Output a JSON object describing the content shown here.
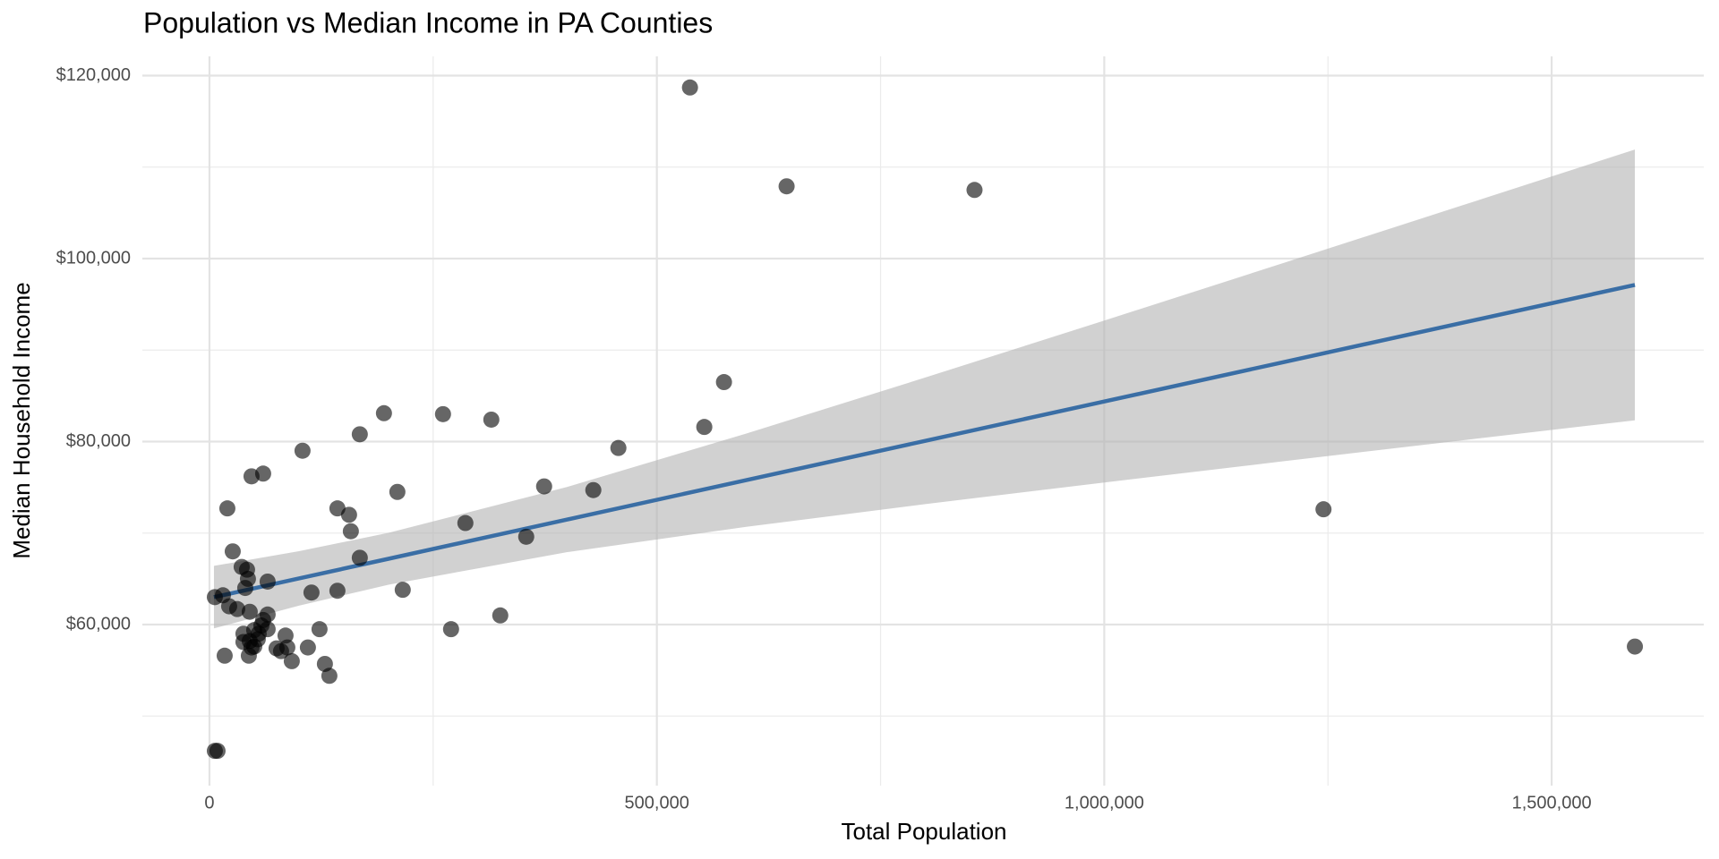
{
  "chart_data": {
    "type": "scatter",
    "title": "Population vs Median Income in PA Counties",
    "x_label": "Total Population",
    "y_label": "Median Household Income",
    "x": [
      537000,
      645000,
      855000,
      1245000,
      1593000,
      575000,
      553000,
      457000,
      429000,
      374000,
      354000,
      286000,
      315000,
      261000,
      195000,
      168000,
      210000,
      216000,
      325000,
      270000,
      104000,
      143000,
      156000,
      158000,
      168000,
      143000,
      114000,
      123000,
      110000,
      129000,
      134000,
      92000,
      85000,
      87000,
      80000,
      75000,
      60000,
      47000,
      20000,
      26000,
      65000,
      65000,
      60000,
      65000,
      36000,
      42000,
      43000,
      40000,
      45000,
      31000,
      22000,
      15000,
      6000,
      50000,
      38000,
      45000,
      38000,
      50000,
      44000,
      17000,
      55000,
      6000,
      9000,
      54000,
      47000,
      58000
    ],
    "values": [
      118700,
      107900,
      107500,
      72600,
      57600,
      86500,
      81600,
      79300,
      74700,
      75100,
      69600,
      71100,
      82400,
      83000,
      83100,
      80800,
      74500,
      63800,
      61000,
      59500,
      79000,
      72700,
      72000,
      70200,
      67300,
      63700,
      63500,
      59500,
      57500,
      55700,
      54400,
      56000,
      58800,
      57500,
      57100,
      57400,
      76500,
      76200,
      72700,
      68000,
      64700,
      61100,
      60500,
      59500,
      66300,
      66000,
      65000,
      64000,
      61400,
      61700,
      62000,
      63200,
      63000,
      59400,
      59000,
      58200,
      58100,
      57600,
      56600,
      56600,
      59000,
      46200,
      46200,
      58400,
      57500,
      59900
    ],
    "color": "#000000",
    "point_opacity": 0.6,
    "fit": {
      "x": [
        5000,
        100000,
        200000,
        400000,
        600000,
        800000,
        1000000,
        1200000,
        1400000,
        1593000
      ],
      "values": [
        63000,
        65042,
        67190,
        71488,
        75785,
        80083,
        84380,
        88677,
        92975,
        97122
      ],
      "lower": [
        59584,
        62064,
        64360,
        67921,
        70685,
        73165,
        75532,
        77847,
        80136,
        82328
      ],
      "upper": [
        66416,
        68020,
        70020,
        75055,
        80885,
        87001,
        93228,
        99507,
        105814,
        111916
      ],
      "color": "#3a6ea5",
      "band_color": "#b3b3b3"
    },
    "xlim": [
      -75000,
      1670000
    ],
    "ylim": [
      42400,
      122100
    ],
    "xticks": [
      0,
      {
        "value": 500000,
        "label": "500,000"
      },
      {
        "value": 1000000,
        "label": "1,000,000"
      },
      {
        "value": 1500000,
        "label": "1,500,000"
      }
    ],
    "yticks": [
      {
        "value": 60000,
        "label": "$60,000"
      },
      {
        "value": 80000,
        "label": "$80,000"
      },
      {
        "value": 100000,
        "label": "$100,000"
      },
      {
        "value": 120000,
        "label": "$120,000"
      }
    ],
    "x_minor_grid": [
      250000,
      750000,
      1250000
    ],
    "y_minor_grid": [
      50000,
      70000,
      90000,
      110000
    ],
    "grid": true
  }
}
